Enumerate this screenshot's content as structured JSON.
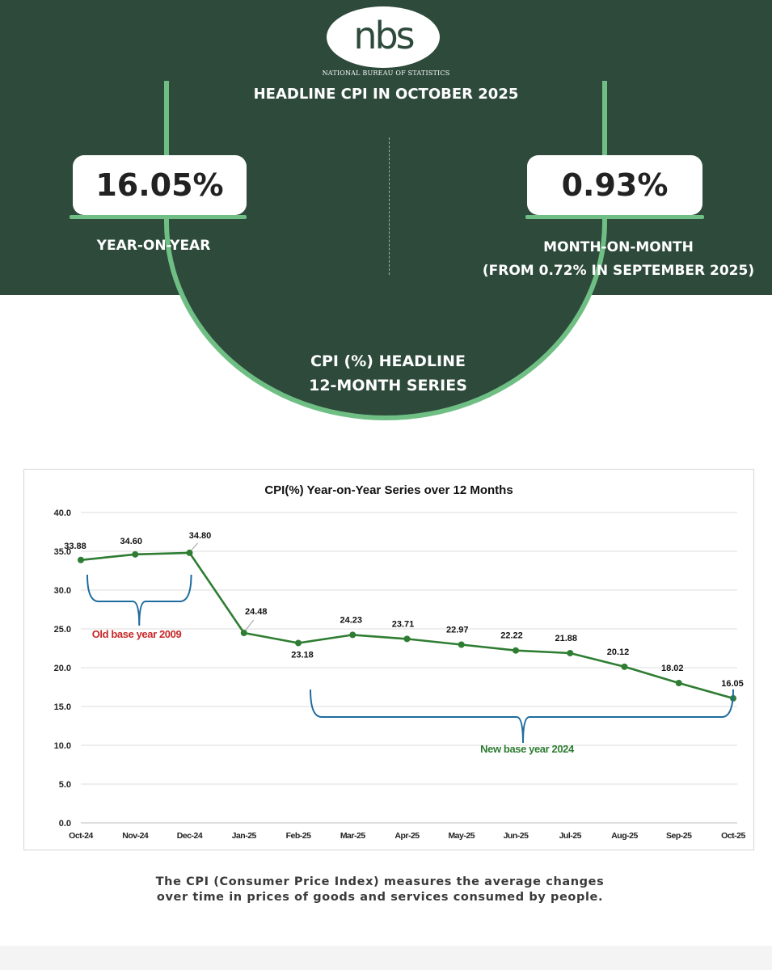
{
  "header": {
    "logo_text": "nbs",
    "org_name": "NATIONAL BUREAU OF STATISTICS",
    "headline": "HEADLINE CPI IN OCTOBER 2025"
  },
  "stats": {
    "yoy_value": "16.05%",
    "yoy_label": "YEAR-ON-YEAR",
    "mom_value": "0.93%",
    "mom_label": "MONTH-ON-MONTH",
    "mom_sublabel": "(FROM 0.72% IN SEPTEMBER 2025)"
  },
  "section": {
    "title_line1": "CPI (%)  HEADLINE",
    "title_line2": "12-MONTH SERIES"
  },
  "chart_data": {
    "type": "line",
    "title": "CPI(%) Year-on-Year Series over 12 Months",
    "categories": [
      "Oct-24",
      "Nov-24",
      "Dec-24",
      "Jan-25",
      "Feb-25",
      "Mar-25",
      "Apr-25",
      "May-25",
      "Jun-25",
      "Jul-25",
      "Aug-25",
      "Sep-25",
      "Oct-25"
    ],
    "series": [
      {
        "values": [
          33.88,
          34.6,
          34.8,
          24.48,
          23.18,
          24.23,
          23.71,
          22.97,
          22.22,
          21.88,
          20.12,
          18.02,
          16.05
        ]
      }
    ],
    "labels": [
      "33.88",
      "34.60",
      "34.80",
      "24.48",
      "23.18",
      "24.23",
      "23.71",
      "22.97",
      "22.22",
      "21.88",
      "20.12",
      "18.02",
      "16.05"
    ],
    "ylim": [
      0,
      40
    ],
    "yticks": [
      "0.0",
      "5.0",
      "10.0",
      "15.0",
      "20.0",
      "25.0",
      "30.0",
      "35.0",
      "40.0"
    ],
    "grid": true,
    "line_color": "#2e7d32",
    "annotations": [
      {
        "text": "Old base year 2009",
        "from": "Oct-24",
        "to": "Dec-24",
        "color": "#c62828"
      },
      {
        "text": "New base year 2024",
        "from": "Feb-25",
        "to": "Oct-25",
        "color": "#2e7d32"
      }
    ],
    "bracket_color": "#1e6b9e"
  },
  "footer": {
    "line1": "The CPI (Consumer Price Index) measures the average changes",
    "line2": "over time in prices of goods and services consumed by people."
  },
  "colors": {
    "panel": "#2d4a3b",
    "accent": "#6fbf85"
  }
}
